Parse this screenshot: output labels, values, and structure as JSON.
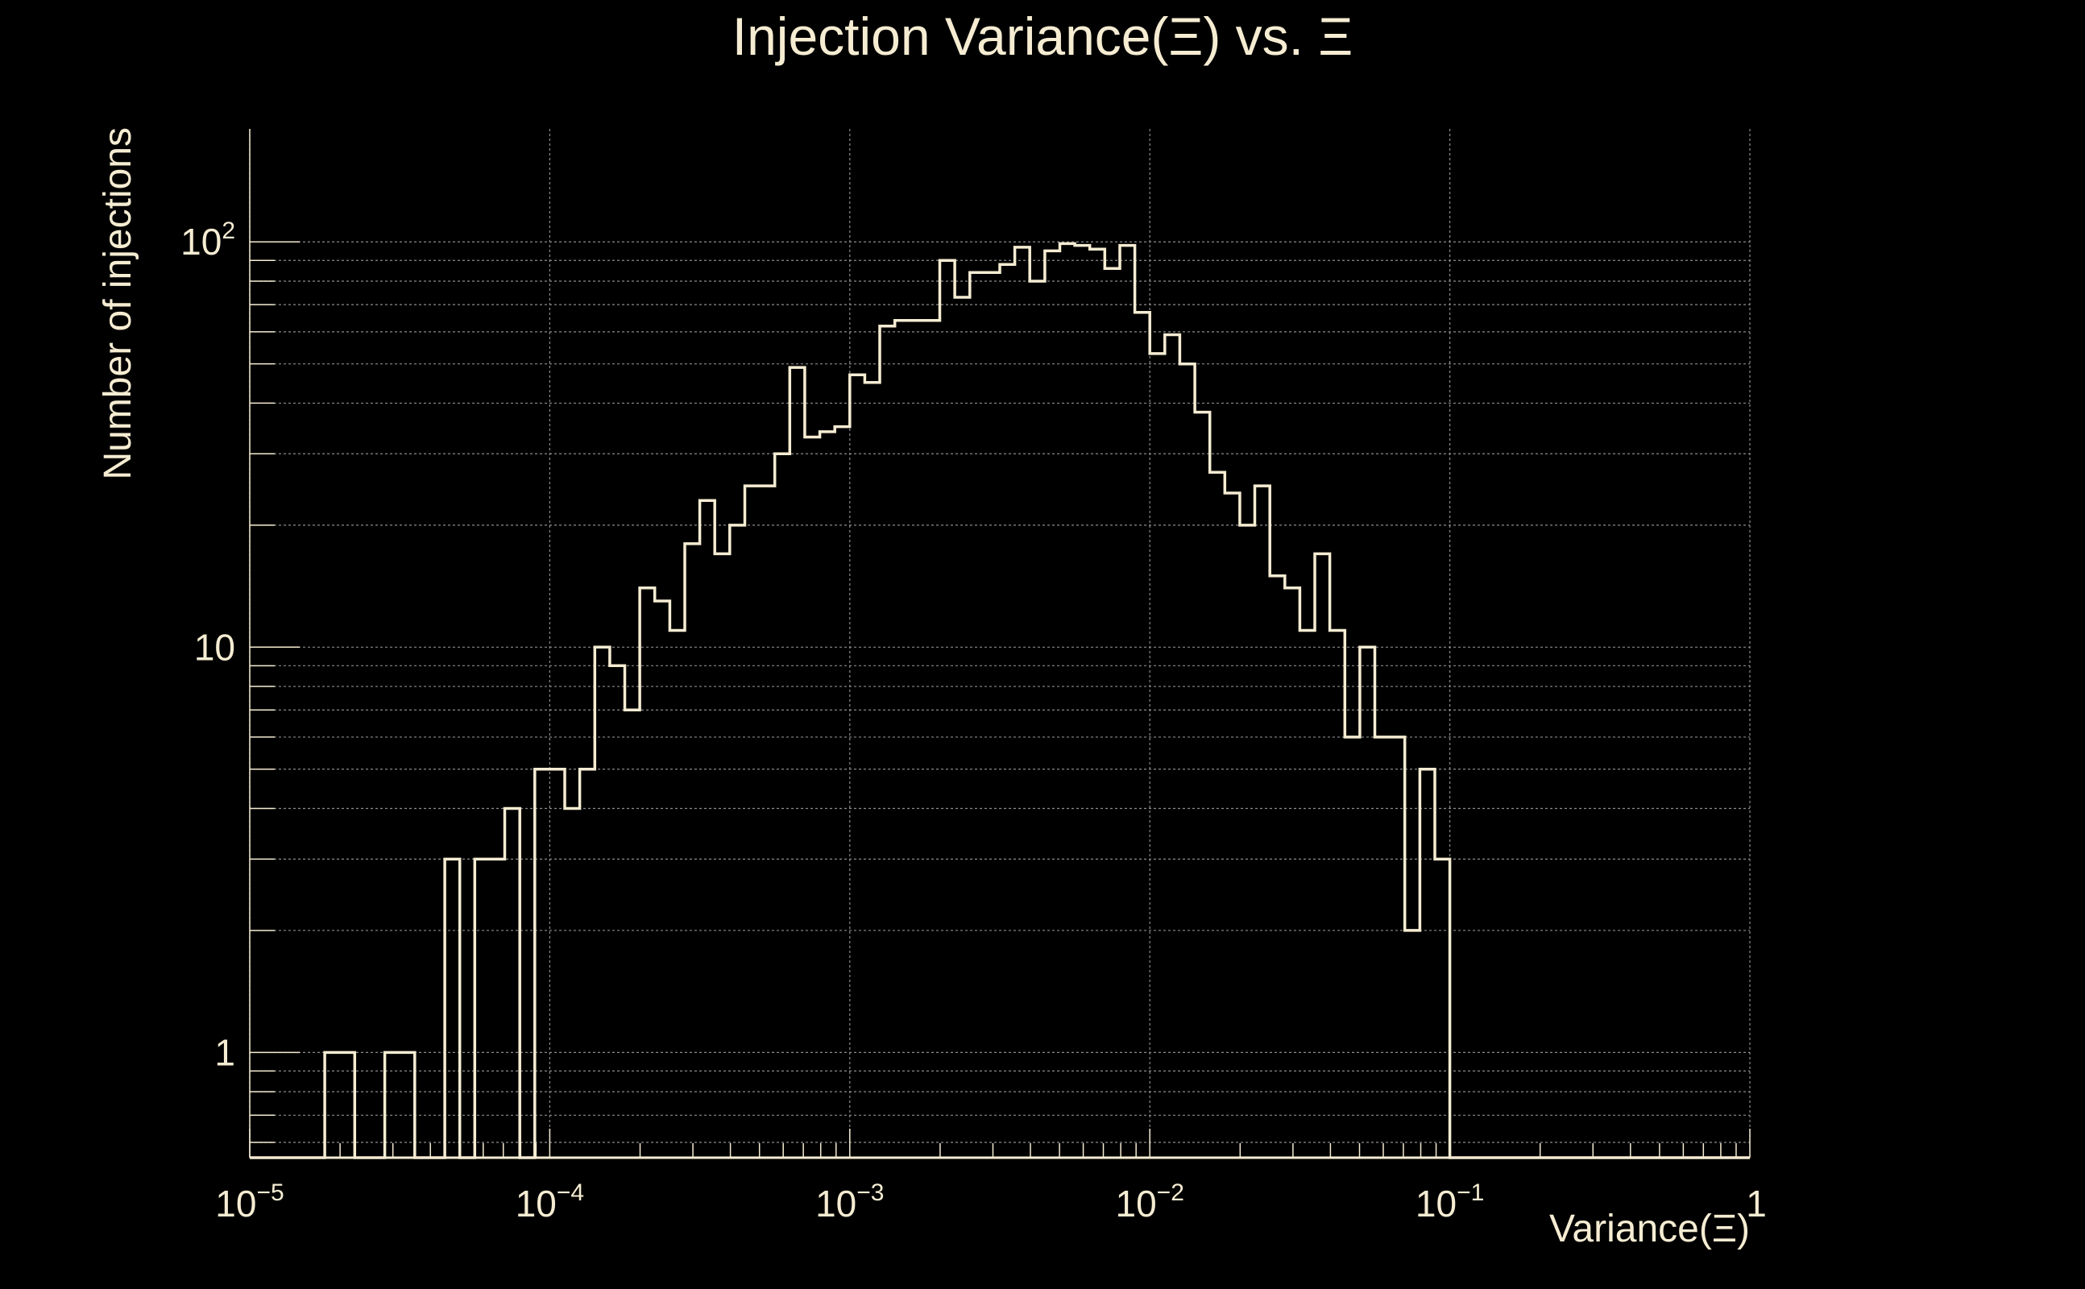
{
  "colors": {
    "background": "#000000",
    "foreground": "#f5ecd2",
    "grid": "#8c8c8c"
  },
  "chart_data": {
    "type": "histogram",
    "title": "Injection Variance(Ξ) vs. Ξ",
    "xlabel": "Variance(Ξ)",
    "ylabel": "Number of injections",
    "xscale": "log",
    "yscale": "log",
    "xlim": [
      1e-05,
      1
    ],
    "ylim": [
      0.55,
      190
    ],
    "grid": true,
    "x_tick_labels": [
      {
        "value": 1e-05,
        "base": "10",
        "exp": "−5"
      },
      {
        "value": 0.0001,
        "base": "10",
        "exp": "−4"
      },
      {
        "value": 0.001,
        "base": "10",
        "exp": "−3"
      },
      {
        "value": 0.01,
        "base": "10",
        "exp": "−2"
      },
      {
        "value": 0.1,
        "base": "10",
        "exp": "−1"
      },
      {
        "value": 1,
        "base": "1",
        "exp": ""
      }
    ],
    "y_tick_labels": [
      {
        "value": 1,
        "base": "1",
        "exp": ""
      },
      {
        "value": 10,
        "base": "10",
        "exp": ""
      },
      {
        "value": 100,
        "base": "10",
        "exp": "2"
      }
    ],
    "bins_per_decade": 20,
    "bin_edges_log10_start": -5,
    "counts": [
      0,
      0,
      0,
      0,
      0,
      1,
      1,
      0,
      0,
      1,
      1,
      0,
      0,
      3,
      0,
      3,
      3,
      4,
      0,
      5,
      5,
      4,
      5,
      10,
      9,
      7,
      14,
      13,
      11,
      18,
      23,
      17,
      20,
      25,
      25,
      30,
      49,
      33,
      34,
      35,
      47,
      45,
      62,
      64,
      64,
      64,
      90,
      73,
      84,
      84,
      88,
      97,
      80,
      95,
      99,
      98,
      96,
      86,
      98,
      67,
      53,
      59,
      50,
      38,
      27,
      24,
      20,
      25,
      15,
      14,
      11,
      17,
      11,
      6,
      10,
      6,
      6,
      2,
      5,
      3,
      0,
      0,
      0,
      0,
      0,
      0,
      0,
      0,
      0,
      0,
      0,
      0,
      0,
      0,
      0,
      0,
      0,
      0,
      0,
      0
    ]
  }
}
